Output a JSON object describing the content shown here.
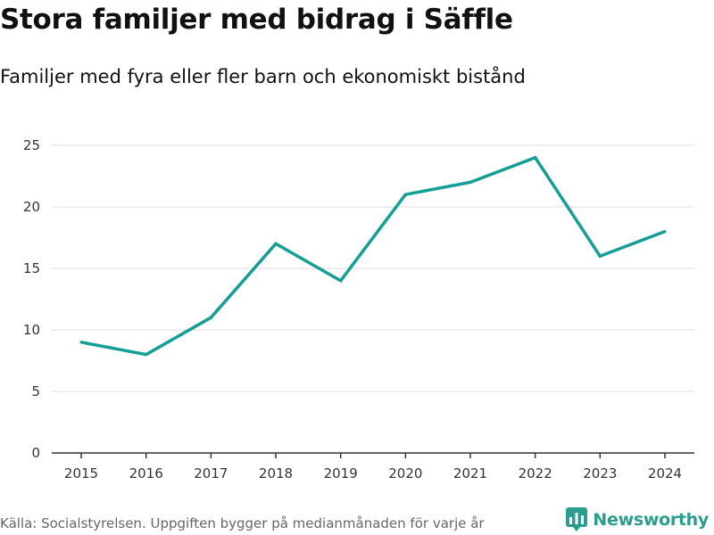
{
  "header": {
    "title": "Stora familjer med bidrag i Säffle",
    "subtitle": "Familjer med fyra eller fler barn och ekonomiskt bistånd"
  },
  "footer": {
    "source": "Källa: Socialstyrelsen. Uppgiften bygger på medianmånaden för varje år",
    "brand": "Newsworthy"
  },
  "colors": {
    "line": "#159e94",
    "grid": "#dddddd",
    "axis": "#333333",
    "brand": "#2a9d8f"
  },
  "icons": {
    "brand_logo": "bar-chart-speech-bubble-icon"
  },
  "chart_data": {
    "type": "line",
    "title": "Stora familjer med bidrag i Säffle",
    "subtitle": "Familjer med fyra eller fler barn och ekonomiskt bistånd",
    "xlabel": "",
    "ylabel": "",
    "categories": [
      "2015",
      "2016",
      "2017",
      "2018",
      "2019",
      "2020",
      "2021",
      "2022",
      "2023",
      "2024"
    ],
    "series": [
      {
        "name": "Familjer med fyra eller fler barn och ekonomiskt bistånd",
        "values": [
          9,
          8,
          11,
          17,
          14,
          21,
          22,
          24,
          16,
          18
        ]
      }
    ],
    "ylim": [
      0,
      25
    ],
    "yticks": [
      0,
      5,
      10,
      15,
      20,
      25
    ],
    "grid": true,
    "legend": "none"
  }
}
